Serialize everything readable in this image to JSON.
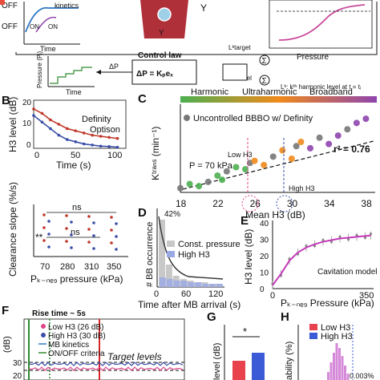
{
  "panels": {
    "B": "B",
    "C": "C",
    "D": "D",
    "E": "E",
    "F": "F",
    "G": "G",
    "H": "H"
  },
  "schematic": {
    "off_label": "OFF",
    "on_label": "ON",
    "on_label_2": "ON",
    "off_label_2": "OFF",
    "kinetics": "kinetics",
    "time_label": "Time",
    "pressure_label": "Pressure",
    "control_law": "Control law",
    "delta_p": "ΔP",
    "law": "ΔP = Kₚeₓ",
    "pressure_axis": "Pressure (Pᵢ)",
    "time_axis": "Time",
    "model_label": "Lᵏmodel",
    "target_label": "Lᵏtarget",
    "legend": "Lᵏ: kᵗʰ harmonic level at t = tᵢ"
  },
  "panel_B": {
    "ylabel": "H3 level (dB)",
    "xlabel": "Time (s)",
    "legend": [
      "Definity",
      "Optison"
    ],
    "legend_colors": [
      "#c0392b",
      "#3b4fa8"
    ],
    "yticks": [
      "20",
      "10",
      "0"
    ],
    "xticks": [
      "0",
      "50",
      "100"
    ],
    "chart_data": {
      "type": "line",
      "series": [
        {
          "name": "Definity",
          "x": [
            0,
            10,
            20,
            30,
            40,
            50,
            60,
            70,
            80,
            90,
            100
          ],
          "values": [
            18,
            16,
            13,
            11,
            9,
            8,
            7,
            6,
            5.5,
            5,
            4.5
          ]
        },
        {
          "name": "Optison",
          "x": [
            0,
            10,
            20,
            30,
            40,
            50,
            60,
            70,
            80,
            90,
            100
          ],
          "values": [
            15,
            12,
            9,
            6,
            4,
            3,
            2,
            1.5,
            1,
            0.8,
            0.5
          ]
        }
      ],
      "xlim": [
        0,
        110
      ],
      "ylim": [
        0,
        22
      ]
    }
  },
  "panel_B2": {
    "ylabel": "Clearance slope (%/s)",
    "xlabel": "Pₖ₋ₙₑ₉ pressure (kPa)",
    "xticks": [
      "70",
      "280",
      "310",
      "350"
    ],
    "sig": [
      "ns",
      "ns",
      "**"
    ]
  },
  "panel_C": {
    "xlabel": "Mean H3 (dB)",
    "ylabel": "Kᵗʳᵃⁿˢ (min⁻¹)",
    "xticks": [
      "18",
      "22",
      "26",
      "30",
      "34",
      "38"
    ],
    "band_labels": [
      "Harmonic",
      "Ultraharmonic",
      "Broadband"
    ],
    "band_colors": [
      "#4caf50",
      "#f08a1c",
      "#8e44ad"
    ],
    "legend": "Uncontrolled BBBO w/ Definity",
    "r2": "r² = 0.76",
    "pressure_note": "P = 70 kPa",
    "low_h3": "Low H3",
    "high_h3": "High H3",
    "circle_26": "26",
    "circle_30": "30",
    "chart_data": {
      "type": "scatter",
      "x": [
        18,
        19,
        20,
        21,
        22,
        22.5,
        23,
        24,
        25,
        25.5,
        26,
        27,
        28,
        29,
        30,
        30.5,
        31,
        32,
        33,
        34,
        35,
        36,
        37,
        38
      ],
      "values": [
        0.02,
        0.04,
        0.03,
        0.05,
        0.08,
        0.06,
        0.1,
        0.12,
        0.11,
        0.14,
        0.15,
        0.13,
        0.17,
        0.2,
        0.16,
        0.22,
        0.24,
        0.21,
        0.26,
        0.23,
        0.27,
        0.3,
        0.33,
        0.35
      ],
      "xlim": [
        18,
        39
      ],
      "ylim": [
        0,
        0.4
      ]
    }
  },
  "panel_D": {
    "ylabel": "# BB occurrence",
    "xlabel": "Time after MB arrival (s)",
    "xticks": [
      "0",
      "60",
      "120"
    ],
    "pct": "42%",
    "legend": [
      "Const. pressure",
      "High H3"
    ],
    "chart_data": {
      "type": "bar",
      "categories": [
        "0",
        "15",
        "30",
        "45",
        "60",
        "75",
        "90",
        "105",
        "120"
      ],
      "series": [
        {
          "name": "Const. pressure",
          "values": [
            42,
            14,
            7,
            5,
            4,
            3,
            3,
            2,
            2
          ]
        },
        {
          "name": "High H3",
          "values": [
            6,
            5,
            4,
            4,
            3,
            3,
            2,
            2,
            2
          ]
        }
      ]
    }
  },
  "panel_E": {
    "ylabel": "H3 level (dB)",
    "xlabel": "Pₖ₋ₙₑ₉ Pressure (kPa)",
    "xticks": [
      "0",
      "350"
    ],
    "yticks": [
      "40",
      "30",
      "20",
      "10",
      "0"
    ],
    "model": "Cavitation model",
    "chart_data": {
      "type": "line",
      "x": [
        0,
        30,
        60,
        90,
        120,
        150,
        180,
        210,
        240,
        270,
        300,
        330,
        350
      ],
      "values": [
        2,
        9,
        17,
        22,
        25,
        27,
        28.5,
        29.5,
        30.5,
        31,
        31.5,
        32,
        32.3
      ],
      "xlim": [
        0,
        360
      ],
      "ylim": [
        0,
        40
      ]
    }
  },
  "panel_F": {
    "rise": "Rise time ~ 5s",
    "ylabel": "(dB)",
    "yticks": [
      "30",
      "20"
    ],
    "legend": [
      "Low H3 (26 dB)",
      "High H3 (30 dB)",
      "MB kinetics",
      "ON/OFF criteria"
    ],
    "target": "Target levels"
  },
  "panel_G": {
    "ylabel": "level (dB)",
    "sig": "*"
  },
  "panel_H": {
    "ylabel": "ability (%)",
    "legend": [
      "Low H3",
      "High H3"
    ],
    "note": "0.003%"
  }
}
